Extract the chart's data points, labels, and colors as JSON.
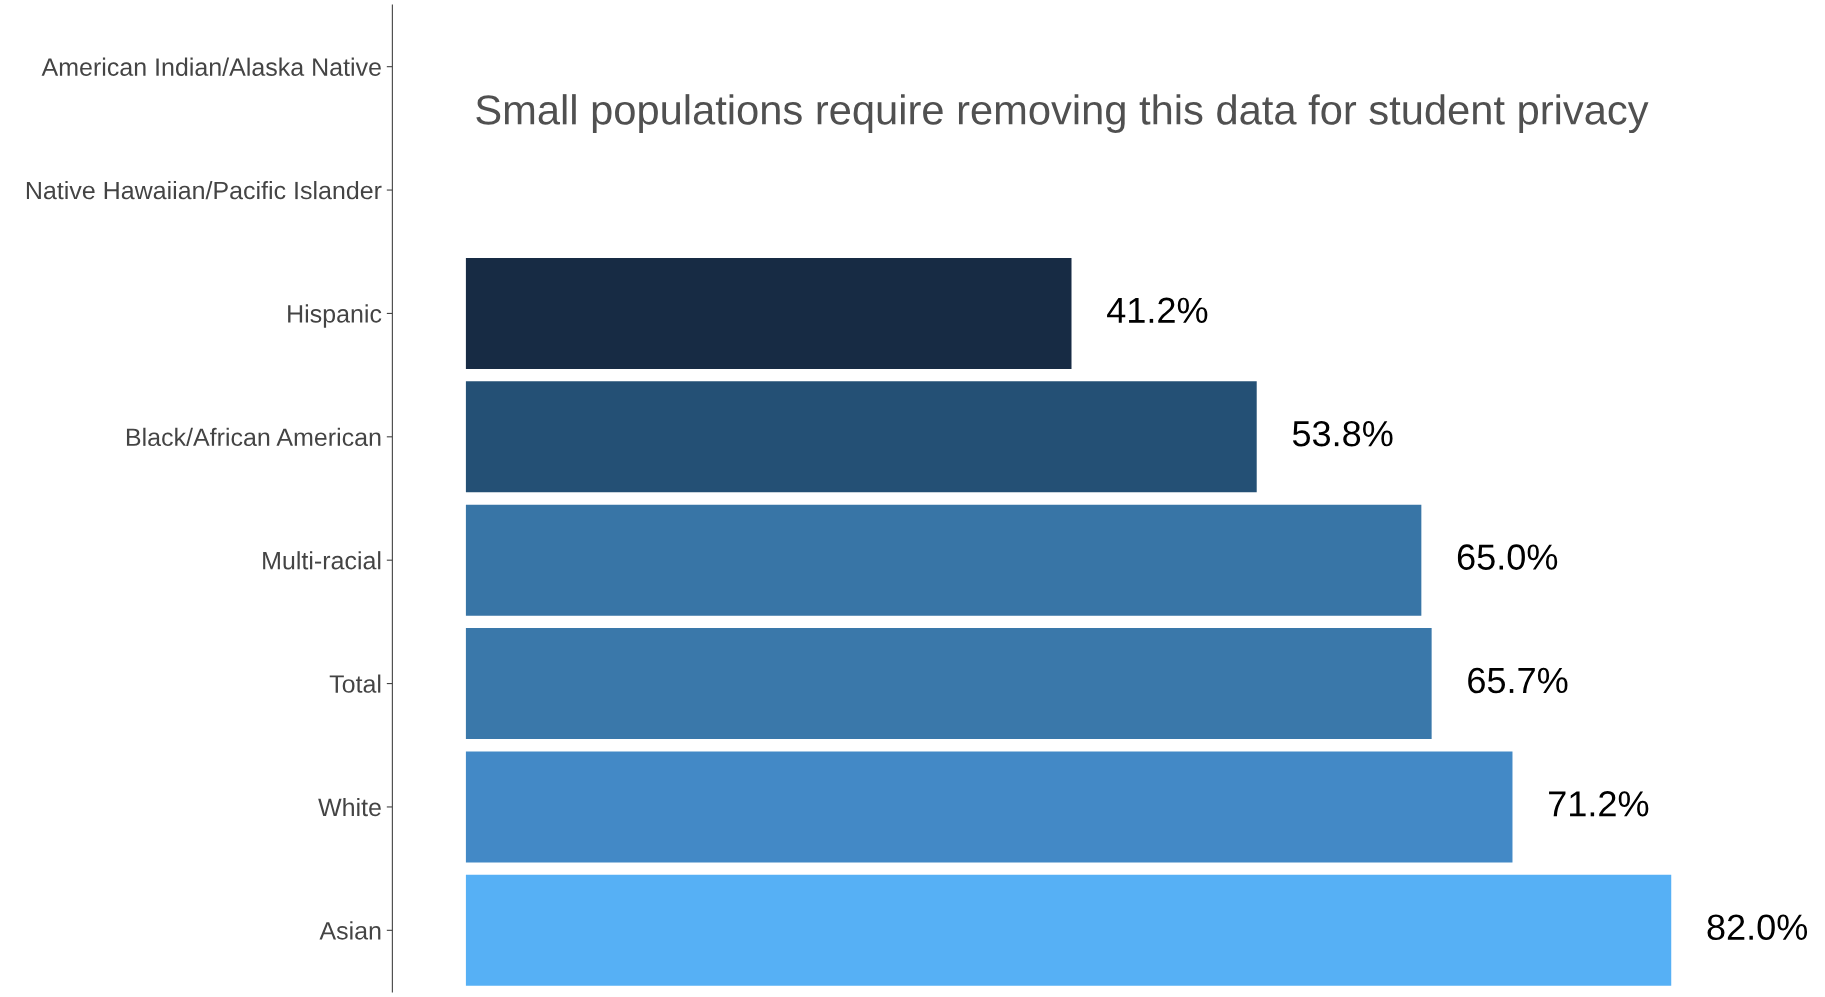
{
  "chart_data": {
    "type": "bar",
    "orientation": "horizontal",
    "categories": [
      "American Indian/Alaska Native",
      "Native Hawaiian/Pacific Islander",
      "Hispanic",
      "Black/African American",
      "Multi-racial",
      "Total",
      "White",
      "Asian"
    ],
    "values": [
      null,
      null,
      41.2,
      53.8,
      65.0,
      65.7,
      71.2,
      82.0
    ],
    "colors": [
      "#172b44",
      "#172b44",
      "#172b44",
      "#245075",
      "#3875a6",
      "#3a78aa",
      "#4389c6",
      "#56b0f5"
    ],
    "value_labels": [
      null,
      null,
      "41.2%",
      "53.8%",
      "65.0%",
      "65.7%",
      "71.2%",
      "82.0%"
    ],
    "tick_labels": "y",
    "grid": false,
    "annotations": [
      "Small populations require removing this data for student privacy"
    ]
  }
}
